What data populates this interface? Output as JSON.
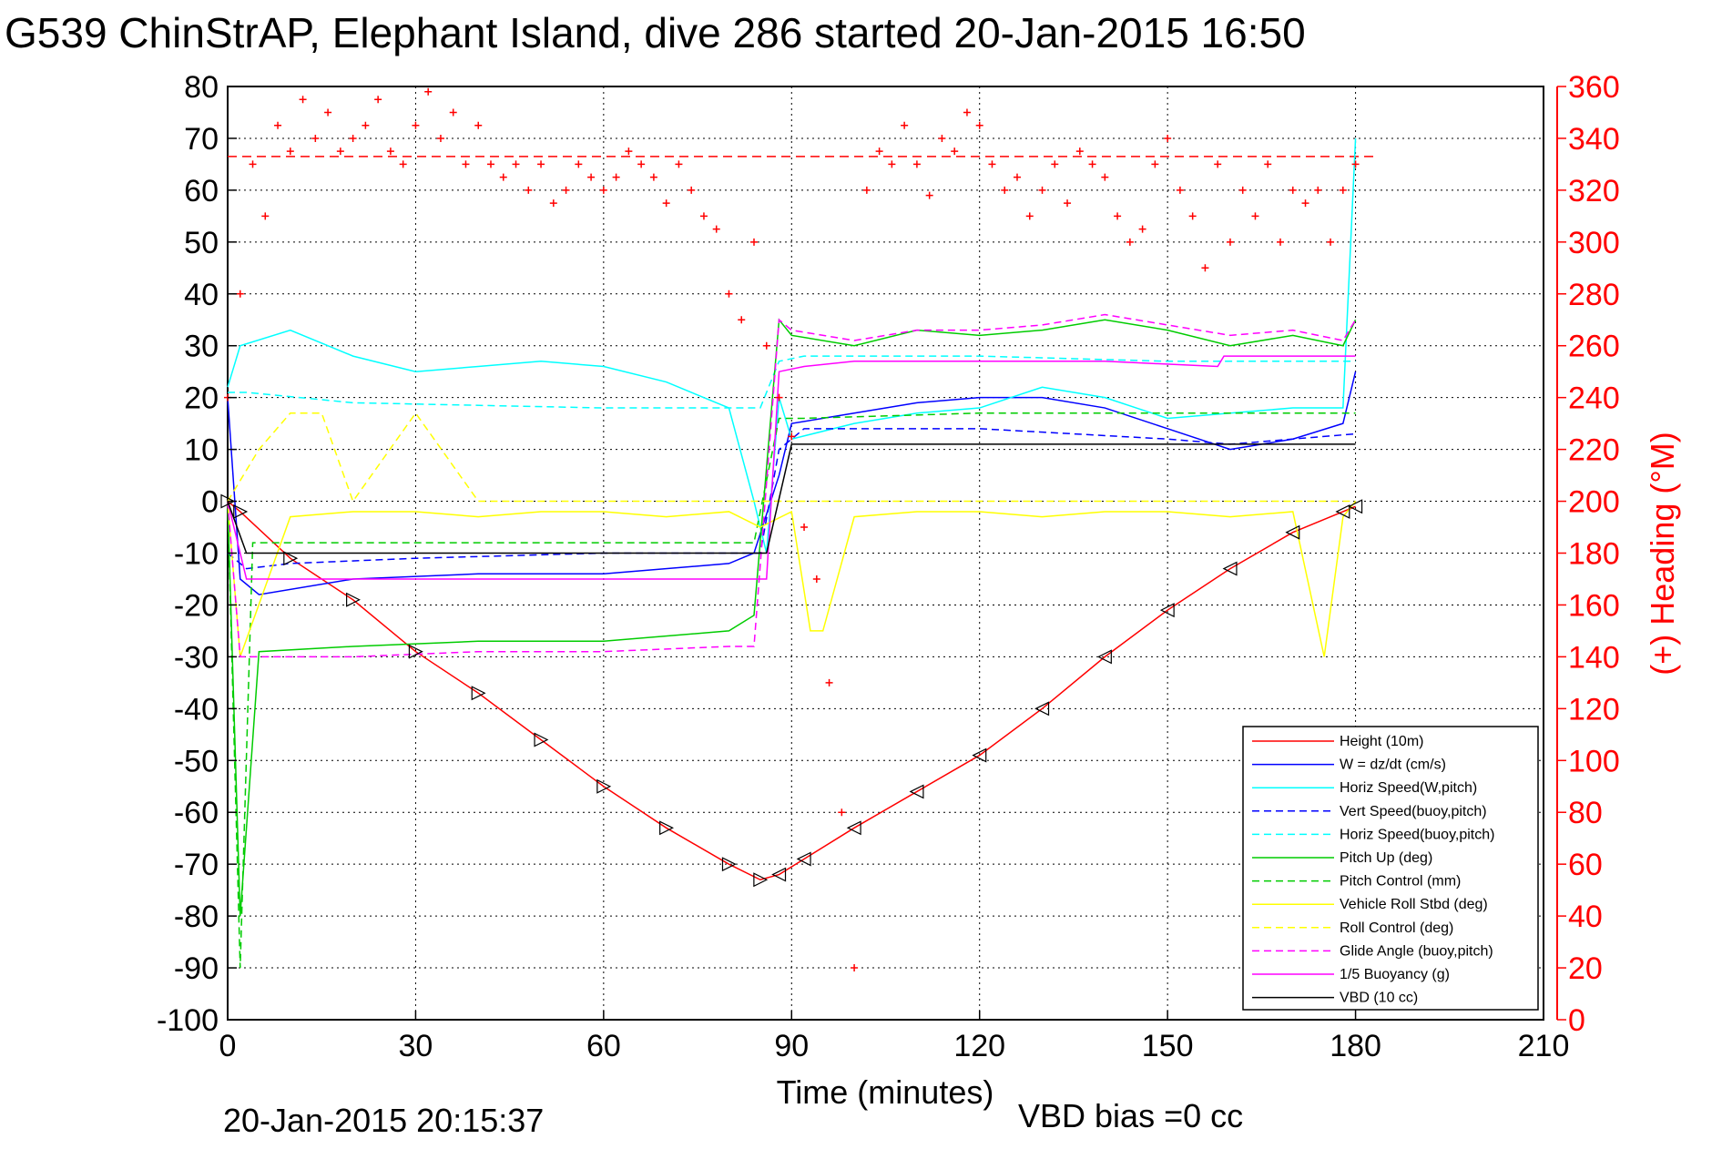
{
  "chart_data": {
    "type": "line",
    "title": "G539 ChinStrAP, Elephant Island, dive 286 started 20-Jan-2015 16:50",
    "xlabel": "Time (minutes)",
    "ylabel": "",
    "y2label": "(+) Heading (°M)",
    "xlim": [
      0,
      210
    ],
    "ylim": [
      -100,
      80
    ],
    "y2lim": [
      0,
      360
    ],
    "xticks": [
      "0",
      "30",
      "60",
      "90",
      "120",
      "150",
      "180",
      "210"
    ],
    "yticks": [
      "80",
      "70",
      "60",
      "50",
      "40",
      "30",
      "20",
      "10",
      "0",
      "-10",
      "-20",
      "-30",
      "-40",
      "-50",
      "-60",
      "-70",
      "-80",
      "-90",
      "-100"
    ],
    "y2ticks": [
      "360",
      "340",
      "320",
      "300",
      "280",
      "260",
      "240",
      "220",
      "200",
      "180",
      "160",
      "140",
      "120",
      "100",
      "80",
      "60",
      "40",
      "20",
      "0"
    ],
    "grid": true,
    "legend_position": "bottom-right",
    "footer_left": "20-Jan-2015 20:15:37",
    "footer_right": "VBD bias =0 cc",
    "heading_reference": 333,
    "series": [
      {
        "name": "Height (10m)",
        "color": "#ff0000",
        "dash": "solid",
        "x": [
          0,
          2,
          10,
          20,
          30,
          40,
          50,
          60,
          70,
          80,
          85,
          88,
          92,
          100,
          110,
          120,
          130,
          140,
          150,
          160,
          170,
          178,
          180
        ],
        "y": [
          0,
          -2,
          -11,
          -19,
          -29,
          -37,
          -46,
          -55,
          -63,
          -70,
          -73,
          -72,
          -69,
          -63,
          -56,
          -49,
          -40,
          -30,
          -21,
          -13,
          -6,
          -2,
          -1
        ]
      },
      {
        "name": "W = dz/dt (cm/s)",
        "color": "#0000ff",
        "dash": "solid",
        "x": [
          0,
          2,
          5,
          20,
          40,
          60,
          80,
          84,
          88,
          90,
          100,
          110,
          120,
          130,
          140,
          150,
          160,
          170,
          178,
          180
        ],
        "y": [
          20,
          -15,
          -18,
          -15,
          -14,
          -14,
          -12,
          -10,
          5,
          15,
          17,
          19,
          20,
          20,
          18,
          14,
          10,
          12,
          15,
          25
        ]
      },
      {
        "name": "Horiz Speed(W,pitch)",
        "color": "#00ffff",
        "dash": "solid",
        "x": [
          0,
          2,
          10,
          20,
          30,
          40,
          50,
          60,
          70,
          80,
          84,
          86,
          88,
          90,
          100,
          110,
          120,
          130,
          140,
          150,
          160,
          170,
          178,
          180
        ],
        "y": [
          22,
          30,
          33,
          28,
          25,
          26,
          27,
          26,
          23,
          18,
          0,
          -10,
          20,
          12,
          15,
          17,
          18,
          22,
          20,
          16,
          17,
          18,
          18,
          70
        ]
      },
      {
        "name": "Vert Speed(buoy,pitch)",
        "color": "#0000ff",
        "dash": "dash",
        "x": [
          0,
          3,
          10,
          30,
          60,
          80,
          85,
          88,
          92,
          120,
          150,
          160,
          180
        ],
        "y": [
          -10,
          -13,
          -12,
          -11,
          -10,
          -10,
          -10,
          10,
          14,
          14,
          12,
          11,
          13
        ]
      },
      {
        "name": "Horiz Speed(buoy,pitch)",
        "color": "#00ffff",
        "dash": "dash",
        "x": [
          0,
          3,
          20,
          60,
          80,
          85,
          88,
          92,
          120,
          150,
          160,
          180
        ],
        "y": [
          21,
          21,
          19,
          18,
          18,
          18,
          27,
          28,
          28,
          27,
          27,
          27
        ]
      },
      {
        "name": "Pitch Up (deg)",
        "color": "#00cc00",
        "dash": "solid",
        "x": [
          0,
          2,
          5,
          20,
          40,
          60,
          80,
          84,
          88,
          90,
          100,
          110,
          120,
          130,
          140,
          150,
          160,
          170,
          178,
          180
        ],
        "y": [
          0,
          -80,
          -29,
          -28,
          -27,
          -27,
          -25,
          -22,
          35,
          32,
          30,
          33,
          32,
          33,
          35,
          33,
          30,
          32,
          30,
          35
        ]
      },
      {
        "name": "Pitch Control (mm)",
        "color": "#00cc00",
        "dash": "dash",
        "x": [
          0,
          2,
          4,
          30,
          60,
          84,
          88,
          92,
          120,
          150,
          180
        ],
        "y": [
          0,
          -90,
          -8,
          -8,
          -8,
          -8,
          16,
          16,
          17,
          17,
          17
        ]
      },
      {
        "name": "Vehicle Roll Stbd (deg)",
        "color": "#ffff00",
        "dash": "solid",
        "x": [
          0,
          2,
          10,
          20,
          30,
          40,
          50,
          60,
          70,
          80,
          85,
          90,
          93,
          95,
          100,
          110,
          120,
          130,
          140,
          150,
          160,
          170,
          175,
          178,
          180
        ],
        "y": [
          0,
          -30,
          -3,
          -2,
          -2,
          -3,
          -2,
          -2,
          -3,
          -2,
          -5,
          -2,
          -25,
          -25,
          -3,
          -2,
          -2,
          -3,
          -2,
          -2,
          -3,
          -2,
          -30,
          -3,
          0
        ]
      },
      {
        "name": "Roll Control (deg)",
        "color": "#ffff00",
        "dash": "dash",
        "x": [
          0,
          5,
          10,
          15,
          20,
          30,
          40,
          50,
          60,
          70,
          80,
          85,
          90,
          95,
          100,
          110,
          120,
          130,
          140,
          150,
          160,
          170,
          180
        ],
        "y": [
          0,
          10,
          17,
          17,
          0,
          17,
          0,
          0,
          0,
          0,
          0,
          0,
          0,
          0,
          0,
          0,
          0,
          0,
          0,
          0,
          0,
          0,
          0
        ]
      },
      {
        "name": "Glide Angle (buoy,pitch)",
        "color": "#ff00ff",
        "dash": "dash",
        "x": [
          0,
          2,
          5,
          20,
          40,
          60,
          80,
          84,
          88,
          90,
          100,
          110,
          120,
          130,
          140,
          150,
          160,
          170,
          178,
          180
        ],
        "y": [
          0,
          -30,
          -30,
          -30,
          -29,
          -29,
          -28,
          -28,
          35,
          33,
          31,
          33,
          33,
          34,
          36,
          34,
          32,
          33,
          31,
          35
        ]
      },
      {
        "name": "1/5 Buoyancy (g)",
        "color": "#ff00ff",
        "dash": "solid",
        "x": [
          0,
          3,
          84,
          86,
          88,
          92,
          100,
          110,
          120,
          140,
          158,
          159,
          170,
          180
        ],
        "y": [
          0,
          -15,
          -15,
          -15,
          25,
          26,
          27,
          27,
          27,
          27,
          26,
          28,
          28,
          28
        ]
      },
      {
        "name": "VBD (10 cc)",
        "color": "#000000",
        "dash": "solid",
        "x": [
          0,
          3,
          84,
          86,
          90,
          100,
          180
        ],
        "y": [
          0,
          -10,
          -10,
          -10,
          11,
          11,
          11
        ]
      }
    ],
    "heading_samples": {
      "name": "(+) Heading",
      "color": "#ff0000",
      "x": [
        0,
        2,
        4,
        6,
        8,
        10,
        12,
        14,
        16,
        18,
        20,
        22,
        24,
        26,
        28,
        30,
        32,
        34,
        36,
        38,
        40,
        42,
        44,
        46,
        48,
        50,
        52,
        54,
        56,
        58,
        60,
        62,
        64,
        66,
        68,
        70,
        72,
        74,
        76,
        78,
        80,
        82,
        84,
        86,
        88,
        90,
        92,
        94,
        96,
        98,
        100,
        102,
        104,
        106,
        108,
        110,
        112,
        114,
        116,
        118,
        120,
        122,
        124,
        126,
        128,
        130,
        132,
        134,
        136,
        138,
        140,
        142,
        144,
        146,
        148,
        150,
        152,
        154,
        156,
        158,
        160,
        162,
        164,
        166,
        168,
        170,
        172,
        174,
        176,
        178,
        180
      ],
      "y": [
        240,
        280,
        330,
        310,
        345,
        335,
        355,
        340,
        350,
        335,
        340,
        345,
        355,
        335,
        330,
        345,
        358,
        340,
        350,
        330,
        345,
        330,
        325,
        330,
        320,
        330,
        315,
        320,
        330,
        325,
        320,
        325,
        335,
        330,
        325,
        315,
        330,
        320,
        310,
        305,
        280,
        270,
        300,
        260,
        240,
        225,
        190,
        170,
        130,
        80,
        20,
        320,
        335,
        330,
        345,
        330,
        318,
        340,
        335,
        350,
        345,
        330,
        320,
        325,
        310,
        320,
        330,
        315,
        335,
        330,
        325,
        310,
        300,
        305,
        330,
        340,
        320,
        310,
        290,
        330,
        300,
        320,
        310,
        330,
        300,
        320,
        315,
        320,
        300,
        320,
        330
      ]
    }
  }
}
